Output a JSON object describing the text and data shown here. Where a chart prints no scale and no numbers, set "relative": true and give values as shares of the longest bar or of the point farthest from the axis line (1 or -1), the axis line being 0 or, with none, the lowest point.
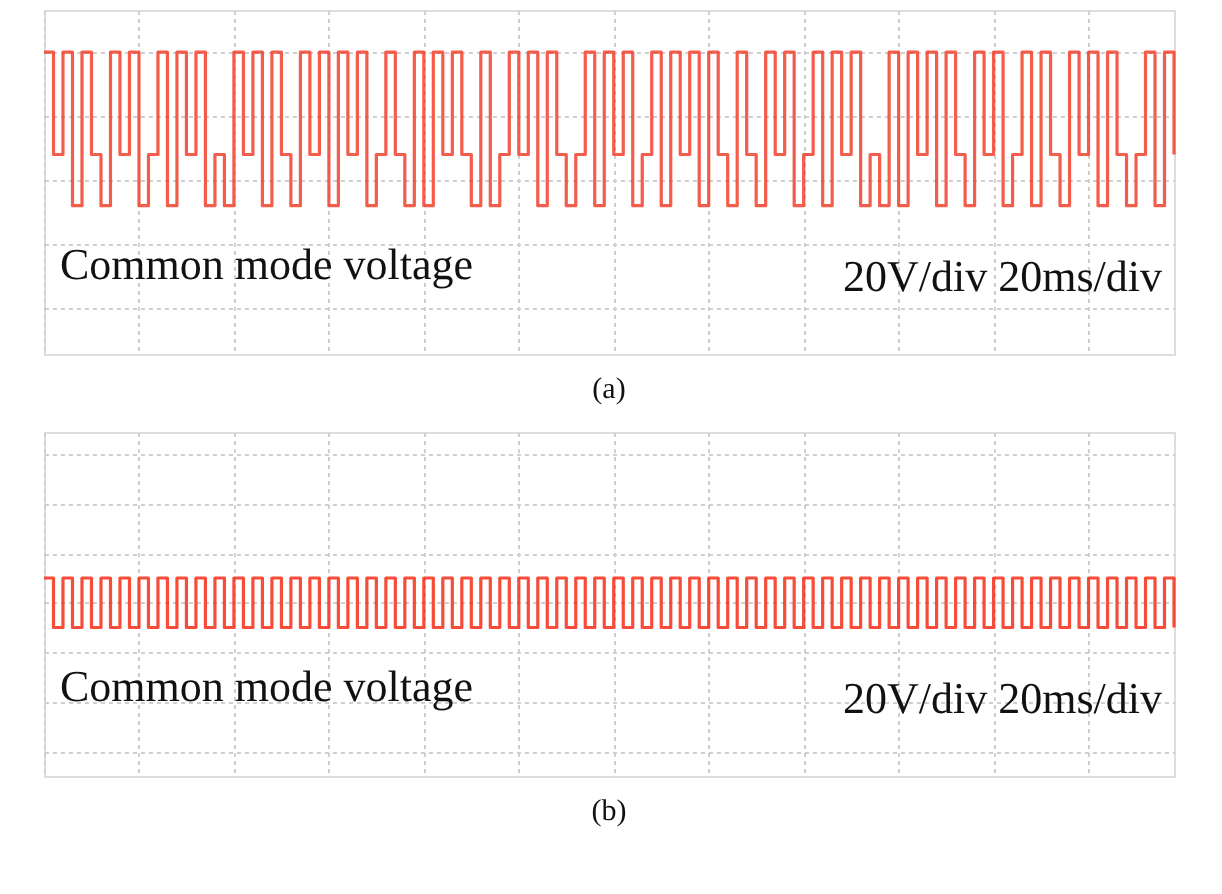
{
  "chart_data": [
    {
      "type": "step",
      "title": "(a)",
      "relative": true,
      "grid": true,
      "line_style": "solid",
      "annotations": [
        "Common mode voltage",
        "20V/div 20ms/div"
      ],
      "categories": [
        null,
        null,
        null,
        null,
        null,
        null,
        null,
        null,
        null,
        null,
        null,
        null,
        null,
        null,
        null,
        null,
        null,
        null,
        null,
        null,
        null,
        null,
        null,
        null,
        null,
        null,
        null,
        null,
        null,
        null,
        null,
        null,
        null,
        null,
        null,
        null,
        null,
        null,
        null,
        null,
        null,
        null,
        null,
        null,
        null,
        null,
        null,
        null,
        null,
        null,
        null,
        null,
        null,
        null,
        null,
        null,
        null,
        null,
        null,
        null,
        null,
        null,
        null,
        null,
        null,
        null,
        null,
        null,
        null,
        null,
        null,
        null,
        null,
        null,
        null,
        null,
        null,
        null,
        null,
        null,
        null,
        null,
        null,
        null,
        null,
        null,
        null,
        null,
        null,
        null,
        null,
        null,
        null,
        null,
        null,
        null,
        null,
        null,
        null,
        null,
        null,
        null,
        null,
        null,
        null,
        null,
        null,
        null,
        null,
        null,
        null,
        null,
        null,
        null,
        null,
        null,
        null,
        null,
        null,
        null
      ],
      "series": [
        {
          "color": "#f2402c",
          "values": [
            1,
            0.2,
            1,
            -0.2,
            1,
            0.2,
            -0.2,
            1,
            0.2,
            1,
            -0.2,
            0.2,
            1,
            -0.2,
            1,
            0.2,
            1,
            -0.2,
            0.2,
            -0.2,
            1,
            0.2,
            1,
            -0.2,
            1,
            0.2,
            -0.2,
            1,
            0.2,
            1,
            -0.2,
            1,
            0.2,
            1,
            -0.2,
            0.2,
            1,
            0.2,
            -0.2,
            1,
            -0.2,
            1,
            0.2,
            1,
            0.2,
            -0.2,
            1,
            -0.2,
            0.2,
            1,
            0.2,
            1,
            -0.2,
            1,
            0.2,
            -0.2,
            0.2,
            1,
            -0.2,
            1,
            0.2,
            1,
            -0.2,
            0.2,
            1,
            -0.2,
            1,
            0.2,
            1,
            -0.2,
            1,
            0.2,
            -0.2,
            1,
            0.2,
            -0.2,
            1,
            0.2,
            1,
            -0.2,
            0.2,
            1,
            -0.2,
            1,
            0.2,
            1,
            -0.2,
            0.2,
            -0.2,
            1,
            -0.2,
            1,
            0.2,
            1,
            -0.2,
            1,
            0.2,
            -0.2,
            1,
            0.2,
            1,
            -0.2,
            0.2,
            1,
            -0.2,
            1,
            0.2,
            -0.2,
            1,
            0.2,
            1,
            -0.2,
            1,
            0.2,
            -0.2,
            0.2,
            1,
            -0.2,
            1,
            0.2
          ]
        }
      ]
    },
    {
      "type": "step",
      "title": "(b)",
      "relative": true,
      "grid": true,
      "line_style": "solid",
      "annotations": [
        "Common mode voltage",
        "20V/div 20ms/div"
      ],
      "categories": [
        null,
        null,
        null,
        null,
        null,
        null,
        null,
        null,
        null,
        null,
        null,
        null,
        null,
        null,
        null,
        null,
        null,
        null,
        null,
        null,
        null,
        null,
        null,
        null,
        null,
        null,
        null,
        null,
        null,
        null,
        null,
        null,
        null,
        null,
        null,
        null,
        null,
        null,
        null,
        null,
        null,
        null,
        null,
        null,
        null,
        null,
        null,
        null,
        null,
        null,
        null,
        null,
        null,
        null,
        null,
        null,
        null,
        null,
        null,
        null,
        null,
        null,
        null,
        null,
        null,
        null,
        null,
        null,
        null,
        null,
        null,
        null,
        null,
        null,
        null,
        null,
        null,
        null,
        null,
        null,
        null,
        null,
        null,
        null,
        null,
        null,
        null,
        null,
        null,
        null,
        null,
        null,
        null,
        null,
        null,
        null,
        null,
        null,
        null,
        null,
        null,
        null,
        null,
        null,
        null,
        null,
        null,
        null,
        null,
        null,
        null,
        null,
        null,
        null,
        null,
        null,
        null,
        null,
        null,
        null
      ],
      "series": [
        {
          "color": "#f52d16",
          "values": [
            1,
            -1,
            1,
            -1,
            1,
            -1,
            1,
            -1,
            1,
            -1,
            1,
            -1,
            1,
            -1,
            1,
            -1,
            1,
            -1,
            1,
            -1,
            1,
            -1,
            1,
            -1,
            1,
            -1,
            1,
            -1,
            1,
            -1,
            1,
            -1,
            1,
            -1,
            1,
            -1,
            1,
            -1,
            1,
            -1,
            1,
            -1,
            1,
            -1,
            1,
            -1,
            1,
            -1,
            1,
            -1,
            1,
            -1,
            1,
            -1,
            1,
            -1,
            1,
            -1,
            1,
            -1,
            1,
            -1,
            1,
            -1,
            1,
            -1,
            1,
            -1,
            1,
            -1,
            1,
            -1,
            1,
            -1,
            1,
            -1,
            1,
            -1,
            1,
            -1,
            1,
            -1,
            1,
            -1,
            1,
            -1,
            1,
            -1,
            1,
            -1,
            1,
            -1,
            1,
            -1,
            1,
            -1,
            1,
            -1,
            1,
            -1,
            1,
            -1,
            1,
            -1,
            1,
            -1,
            1,
            -1,
            1,
            -1,
            1,
            -1,
            1,
            -1,
            1,
            -1,
            1,
            -1,
            1,
            -1
          ]
        }
      ]
    }
  ]
}
